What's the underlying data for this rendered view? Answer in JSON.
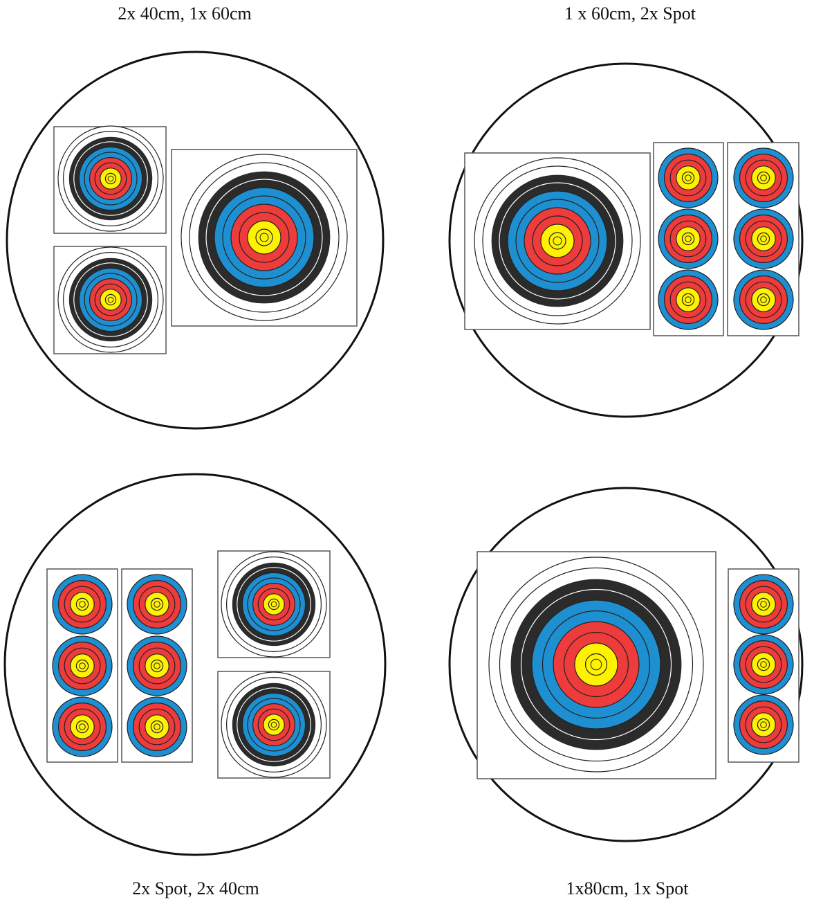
{
  "panels": [
    {
      "caption": "2x 40cm, 1x 60cm"
    },
    {
      "caption": "1 x 60cm, 2x Spot"
    },
    {
      "caption": "2x Spot, 2x 40cm"
    },
    {
      "caption": "1x80cm, 1x Spot"
    }
  ]
}
